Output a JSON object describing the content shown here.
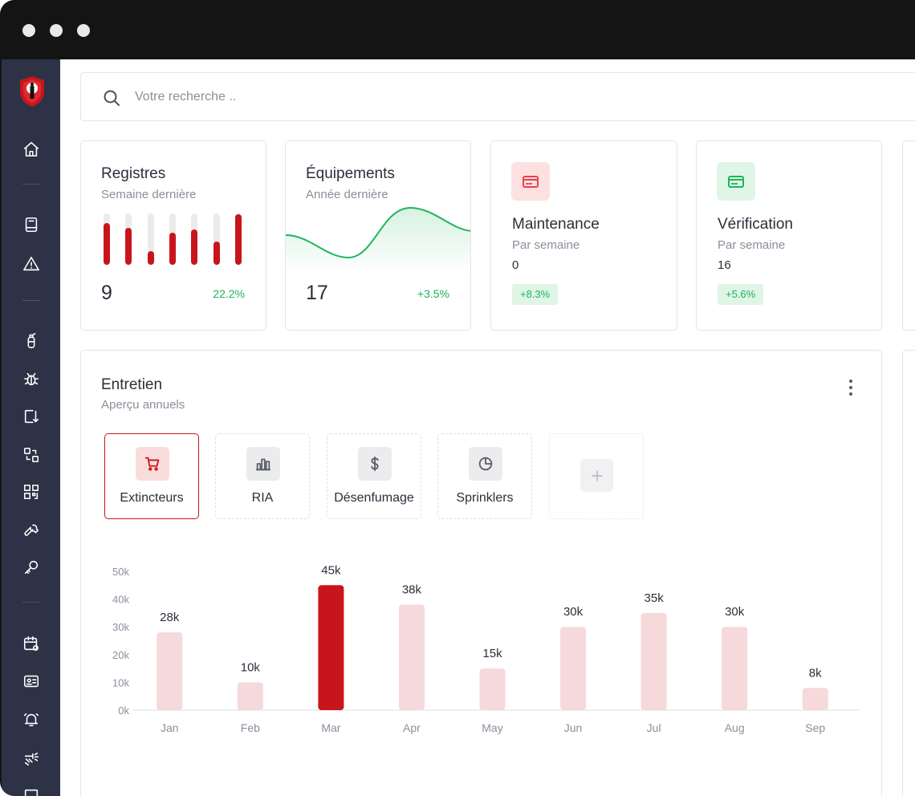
{
  "search": {
    "placeholder": "Votre recherche .."
  },
  "sidebar": {
    "items": [
      {
        "icon": "home-icon"
      },
      {
        "icon": "book-icon"
      },
      {
        "icon": "warning-icon"
      },
      {
        "icon": "extinguisher-icon"
      },
      {
        "icon": "bug-icon"
      },
      {
        "icon": "transfer-icon"
      },
      {
        "icon": "swap-icon"
      },
      {
        "icon": "qr-code-icon"
      },
      {
        "icon": "wrench-icon"
      },
      {
        "icon": "key-icon"
      },
      {
        "icon": "calendar-icon"
      },
      {
        "icon": "id-card-icon"
      },
      {
        "icon": "alarm-icon"
      },
      {
        "icon": "sprinkler-icon"
      }
    ]
  },
  "cards": {
    "registres": {
      "title": "Registres",
      "subtitle": "Semaine dernière",
      "value": "9",
      "change": "22.2%",
      "bars": [
        0.82,
        0.72,
        0.27,
        0.62,
        0.68,
        0.45,
        0.98
      ]
    },
    "equipements": {
      "title": "Équipements",
      "subtitle": "Année dernière",
      "value": "17",
      "change": "+3.5%"
    },
    "maintenance": {
      "title": "Maintenance",
      "subtitle": "Par semaine",
      "count": "0",
      "change": "+8.3%",
      "icon": "credit-card-icon",
      "color": "#e8414a",
      "bg": "#fde1e1"
    },
    "verification": {
      "title": "Vérification",
      "subtitle": "Par semaine",
      "count": "16",
      "change": "+5.6%",
      "icon": "credit-card-icon",
      "color": "#1db55b",
      "bg": "#dff5e6"
    }
  },
  "panel": {
    "title": "Entretien",
    "subtitle": "Aperçu annuels",
    "tabs": [
      {
        "label": "Extincteurs",
        "icon": "cart-icon",
        "active": true
      },
      {
        "label": "RIA",
        "icon": "bar-chart-icon",
        "active": false
      },
      {
        "label": "Désenfumage",
        "icon": "dollar-icon",
        "active": false
      },
      {
        "label": "Sprinklers",
        "icon": "pie-chart-icon",
        "active": false
      }
    ]
  },
  "chart_data": {
    "type": "bar",
    "categories": [
      "Jan",
      "Feb",
      "Mar",
      "Apr",
      "May",
      "Jun",
      "Jul",
      "Aug",
      "Sep"
    ],
    "values": [
      28,
      10,
      45,
      38,
      15,
      30,
      35,
      30,
      8
    ],
    "value_labels": [
      "28k",
      "10k",
      "45k",
      "38k",
      "15k",
      "30k",
      "35k",
      "30k",
      "8k"
    ],
    "y_ticks": [
      "0k",
      "10k",
      "20k",
      "30k",
      "40k",
      "50k"
    ],
    "ylim": [
      0,
      50
    ],
    "highlight_index": 2,
    "bar_color": "#f6d9da",
    "highlight_color": "#c8151b",
    "title": "",
    "xlabel": "",
    "ylabel": ""
  }
}
